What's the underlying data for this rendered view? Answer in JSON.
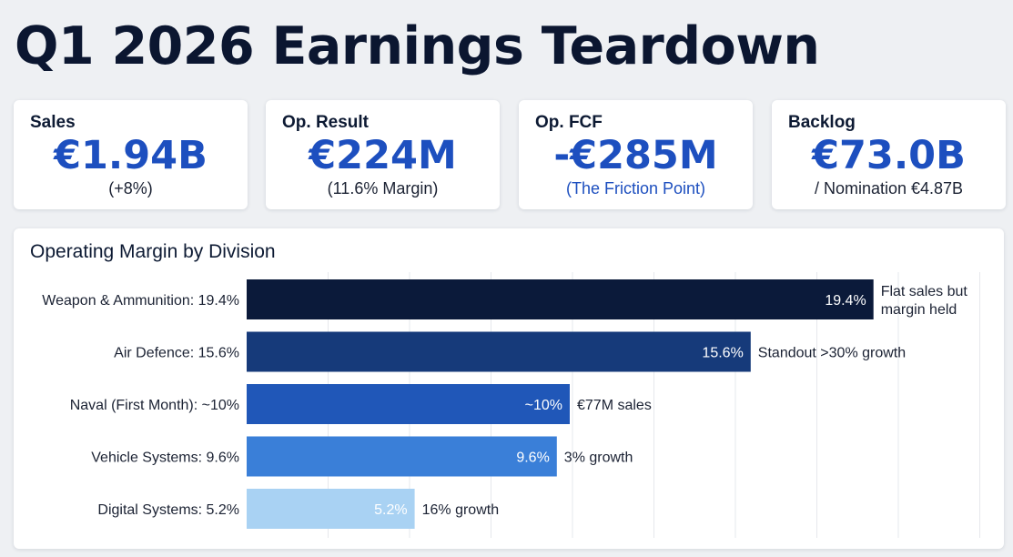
{
  "title": "Q1 2026 Earnings Teardown",
  "kpis": [
    {
      "label": "Sales",
      "value": "€1.94B",
      "sub": "(+8%)"
    },
    {
      "label": "Op. Result",
      "value": "€224M",
      "sub": "(11.6% Margin)"
    },
    {
      "label": "Op. FCF",
      "value": "-€285M",
      "sub": "(The Friction Point)"
    },
    {
      "label": "Backlog",
      "value": "€73.0B",
      "sub": "/ Nomination €4.87B"
    }
  ],
  "colors": {
    "accent": "#1d4fbf",
    "bars": [
      "#0b1a3a",
      "#163a7a",
      "#2057b8",
      "#3a7fd8",
      "#a9d2f3"
    ]
  },
  "chart_data": {
    "type": "bar",
    "orientation": "horizontal",
    "title": "Operating Margin by Division",
    "categories": [
      "Weapon & Ammunition: 19.4%",
      "Air Defence: 15.6%",
      "Naval (First Month): ~10%",
      "Vehicle Systems: 9.6%",
      "Digital Systems: 5.2%"
    ],
    "values": [
      19.4,
      15.6,
      10,
      9.6,
      5.2
    ],
    "value_labels": [
      "19.4%",
      "15.6%",
      "~10%",
      "9.6%",
      "5.2%"
    ],
    "annotations": [
      [
        "Flat sales but",
        "margin held"
      ],
      [
        "Standout >30% growth"
      ],
      [
        "€77M sales"
      ],
      [
        "3% growth"
      ],
      [
        "16% growth"
      ]
    ],
    "xlim": [
      0,
      24
    ],
    "grid": true,
    "legend": "none"
  }
}
